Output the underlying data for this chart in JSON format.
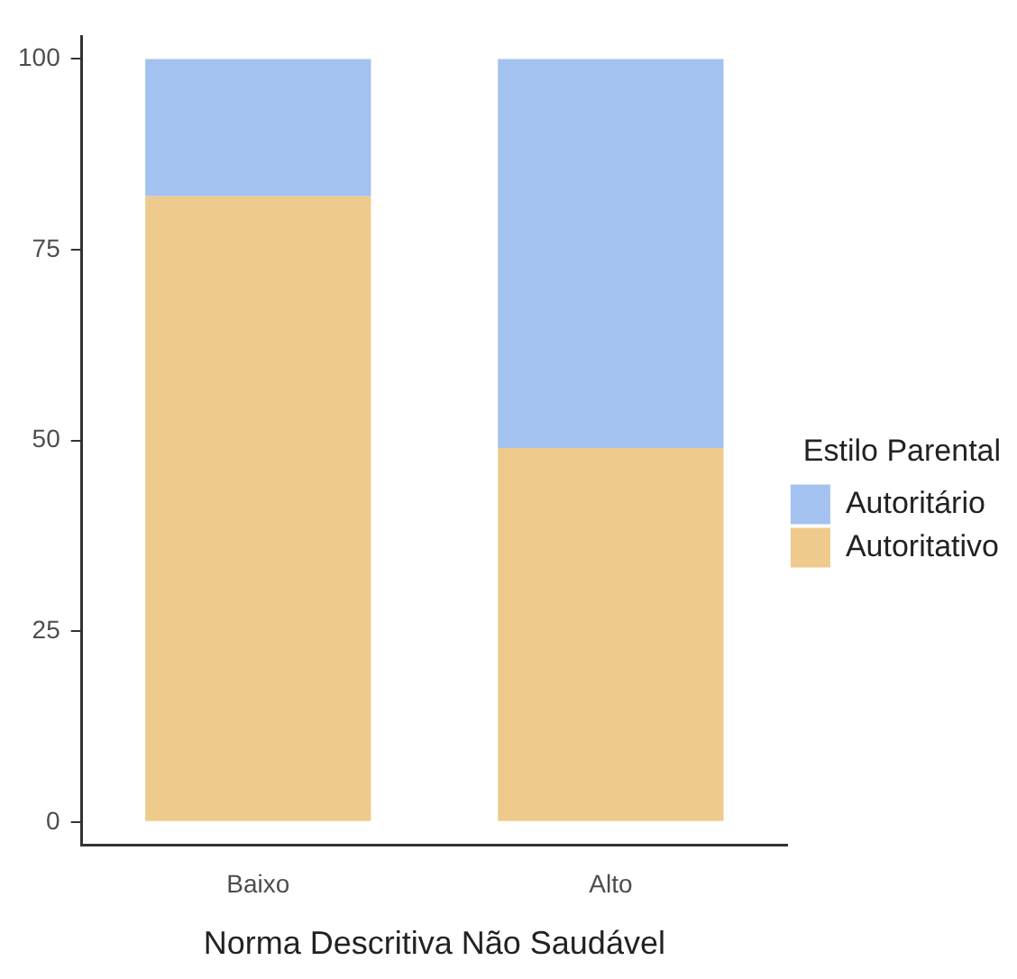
{
  "chart_data": {
    "type": "bar",
    "stacked": true,
    "xlabel": "Norma Descritiva Não Saudável",
    "legend_title": "Estilo Parental",
    "legend": "right",
    "grid": false,
    "categories": [
      "Baixo",
      "Alto"
    ],
    "series": [
      {
        "name": "Autoritativo",
        "color": "#eecb8c",
        "values": [
          82,
          49
        ]
      },
      {
        "name": "Autoritário",
        "color": "#a4c2f0",
        "values": [
          18,
          51
        ]
      }
    ],
    "ylim": [
      -3,
      103
    ],
    "yticks": [
      0,
      25,
      50,
      75,
      100
    ]
  }
}
